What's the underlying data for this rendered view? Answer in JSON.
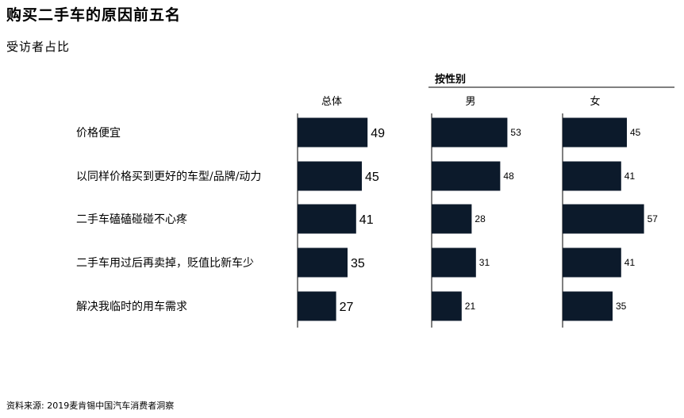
{
  "title": "购买二手车的原因前五名",
  "subtitle": "受访者占比",
  "group_header": "按性别",
  "source": "资料来源: 2019麦肯锡中国汽车消费者洞察",
  "colors": {
    "bar": "#0c1a2b",
    "axis": "#000000"
  },
  "chart_data": {
    "type": "bar",
    "orientation": "horizontal",
    "categories": [
      "价格便宜",
      "以同样价格买到更好的车型/品牌/动力",
      "二手车磕磕碰碰不心疼",
      "二手车用过后再卖掉，贬值比新车少",
      "解决我临时的用车需求"
    ],
    "series": [
      {
        "name": "总体",
        "values": [
          49,
          45,
          41,
          35,
          27
        ]
      },
      {
        "name": "男",
        "values": [
          53,
          48,
          28,
          31,
          21
        ]
      },
      {
        "name": "女",
        "values": [
          45,
          41,
          57,
          41,
          35
        ]
      }
    ]
  }
}
